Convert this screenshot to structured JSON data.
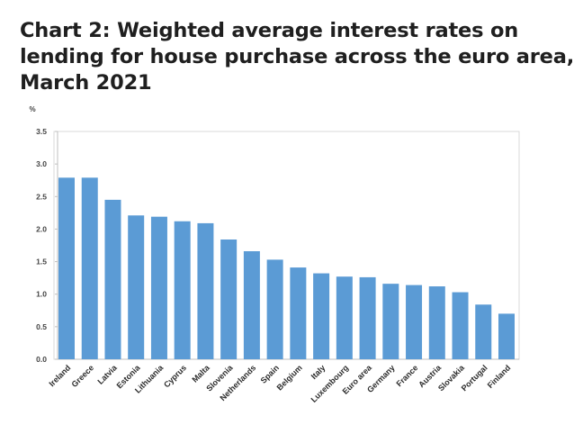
{
  "title_lines": [
    "Chart 2: Weighted average interest rates on",
    "lending for house purchase across the euro area,",
    "March 2021"
  ],
  "chart_data": {
    "type": "bar",
    "title": "Chart 2: Weighted average interest rates on lending for house purchase across the euro area, March 2021",
    "ylabel": "%",
    "xlabel": "",
    "ylim": [
      0,
      3.5
    ],
    "yticks": [
      "0.0",
      "0.5",
      "1.0",
      "1.5",
      "2.0",
      "2.5",
      "3.0",
      "3.5"
    ],
    "grid": false,
    "bar_color": "#5B9BD5",
    "categories": [
      "Ireland",
      "Greece",
      "Latvia",
      "Estonia",
      "Lithuania",
      "Cyprus",
      "Malta",
      "Slovenia",
      "Netherlands",
      "Spain",
      "Belgium",
      "Italy",
      "Luxembourg",
      "Euro area",
      "Germany",
      "France",
      "Austria",
      "Slovakia",
      "Portugal",
      "Finland"
    ],
    "values": [
      2.79,
      2.79,
      2.45,
      2.21,
      2.19,
      2.12,
      2.09,
      1.84,
      1.66,
      1.53,
      1.41,
      1.32,
      1.27,
      1.26,
      1.16,
      1.14,
      1.12,
      1.03,
      0.84,
      0.7
    ]
  }
}
